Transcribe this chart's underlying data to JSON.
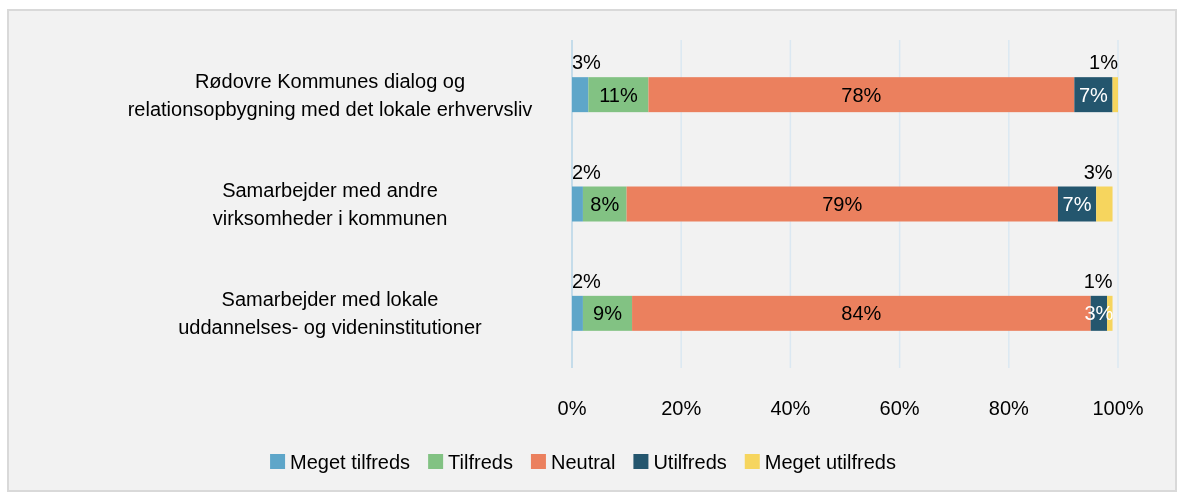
{
  "chart_data": {
    "type": "bar",
    "orientation": "horizontal",
    "stacked": true,
    "grid": "x",
    "legend": "bottom",
    "categories": [
      "Rødovre Kommunes dialog og relationsopbygning med det lokale erhvervsliv",
      "Samarbejder med andre virksomheder i kommunen",
      "Samarbejder med lokale uddannelses- og videninstitutioner"
    ],
    "xlim": [
      0,
      100
    ],
    "xticks": [
      {
        "value": 0,
        "label": "0%"
      },
      {
        "value": 20,
        "label": "20%"
      },
      {
        "value": 40,
        "label": "40%"
      },
      {
        "value": 60,
        "label": "60%"
      },
      {
        "value": 80,
        "label": "80%"
      },
      {
        "value": 100,
        "label": "100%"
      }
    ],
    "series": [
      {
        "name": "Meget tilfreds",
        "color": "#5ea6c9",
        "values": [
          3,
          2,
          2
        ],
        "value_labels": [
          "3%",
          "2%",
          "2%"
        ]
      },
      {
        "name": "Tilfreds",
        "color": "#82c283",
        "values": [
          11,
          8,
          9
        ],
        "value_labels": [
          "11%",
          "8%",
          "9%"
        ]
      },
      {
        "name": "Neutral",
        "color": "#eb805e",
        "values": [
          78,
          79,
          84
        ],
        "value_labels": [
          "78%",
          "79%",
          "84%"
        ]
      },
      {
        "name": "Utilfreds",
        "color": "#24566e",
        "values": [
          7,
          7,
          3
        ],
        "value_labels": [
          "7%",
          "7%",
          "3%"
        ]
      },
      {
        "name": "Meget utilfreds",
        "color": "#f6d55e",
        "values": [
          1,
          3,
          1
        ],
        "value_labels": [
          "1%",
          "3%",
          "1%"
        ]
      }
    ]
  }
}
